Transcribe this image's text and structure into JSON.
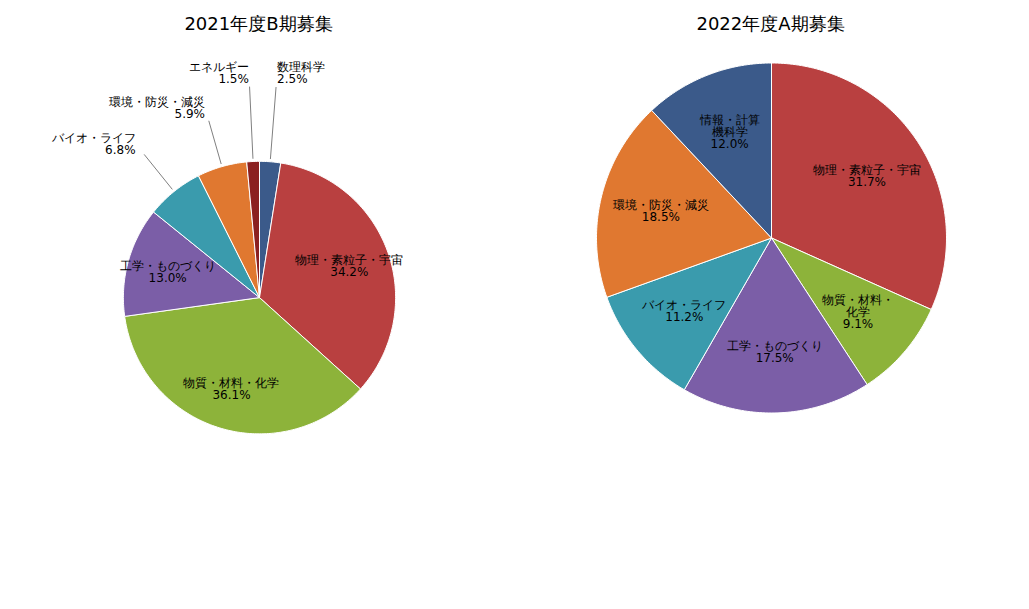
{
  "chart_data": [
    {
      "type": "pie",
      "title": "2021年度B期募集",
      "categories": [
        "数理科学",
        "物理・素粒子・宇宙",
        "物質・材料・化学",
        "工学・ものづくり",
        "バイオ・ライフ",
        "環境・防災・減災",
        "エネルギー"
      ],
      "values": [
        2.5,
        34.2,
        36.1,
        13.0,
        6.8,
        5.9,
        1.5
      ],
      "colors": [
        "#3B5A8A",
        "#B94040",
        "#8DB33A",
        "#7B5EA7",
        "#3A9BAD",
        "#E07830",
        "#8B2020"
      ],
      "data_labels": true,
      "value_labels": [
        "2.5%",
        "34.2%",
        "36.1%",
        "13.0%",
        "6.8%",
        "5.9%",
        "1.5%"
      ]
    },
    {
      "type": "pie",
      "title": "2022年度A期募集",
      "categories": [
        "物理・素粒子・宇宙",
        "物質・材料・\n化学",
        "工学・ものづくり",
        "バイオ・ライフ",
        "環境・防災・減災",
        "情報・計算\n機科学"
      ],
      "values": [
        31.7,
        9.1,
        17.5,
        11.2,
        18.5,
        12.0
      ],
      "colors": [
        "#B94040",
        "#8DB33A",
        "#7B5EA7",
        "#3A9BAD",
        "#E07830",
        "#3B5A8A"
      ],
      "data_labels": true,
      "value_labels": [
        "31.7%",
        "9.1%",
        "17.5%",
        "11.2%",
        "18.5%",
        "12.0%"
      ]
    }
  ]
}
